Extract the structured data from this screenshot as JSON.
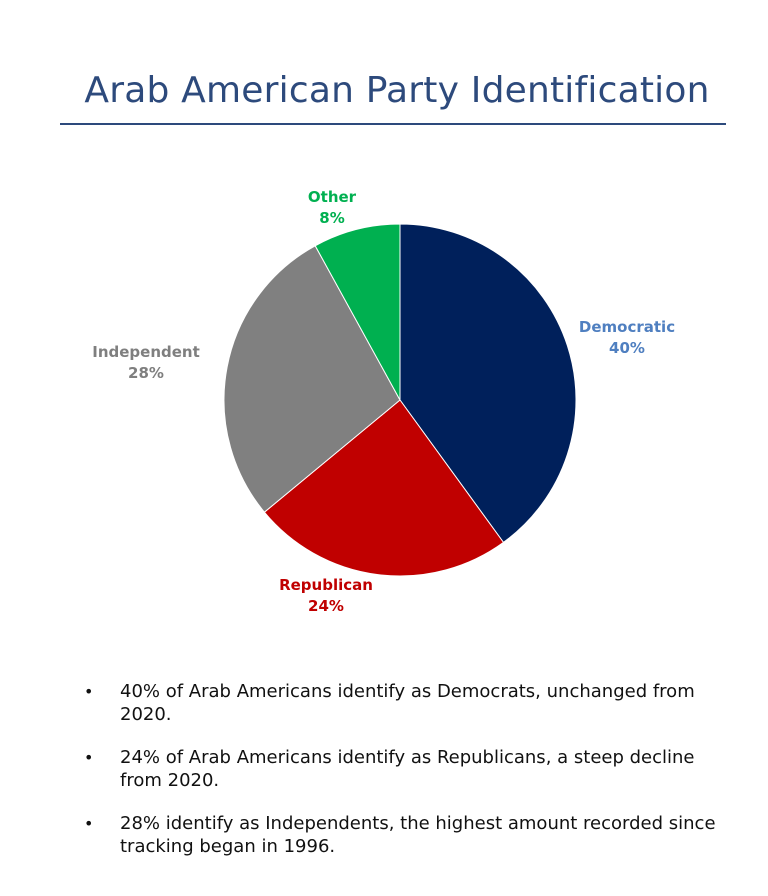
{
  "title": "Arab American Party Identification",
  "chart_data": {
    "type": "pie",
    "slices": [
      {
        "label": "Democratic",
        "value": 40,
        "value_label": "40%",
        "color": "#00205b",
        "label_color": "#4f7fc0"
      },
      {
        "label": "Republican",
        "value": 24,
        "value_label": "24%",
        "color": "#c00000",
        "label_color": "#c00000"
      },
      {
        "label": "Independent",
        "value": 28,
        "value_label": "28%",
        "color": "#808080",
        "label_color": "#7f7f7f"
      },
      {
        "label": "Other",
        "value": 8,
        "value_label": "8%",
        "color": "#00b050",
        "label_color": "#00b050"
      }
    ]
  },
  "bullets": [
    {
      "marker": "•",
      "text": "40% of Arab Americans identify as Democrats, unchanged from 2020."
    },
    {
      "marker": "•",
      "text": "24% of Arab Americans identify as Republicans, a steep decline from 2020."
    },
    {
      "marker": "•",
      "text": "28% identify as Independents, the highest amount recorded since tracking began in 1996."
    }
  ]
}
